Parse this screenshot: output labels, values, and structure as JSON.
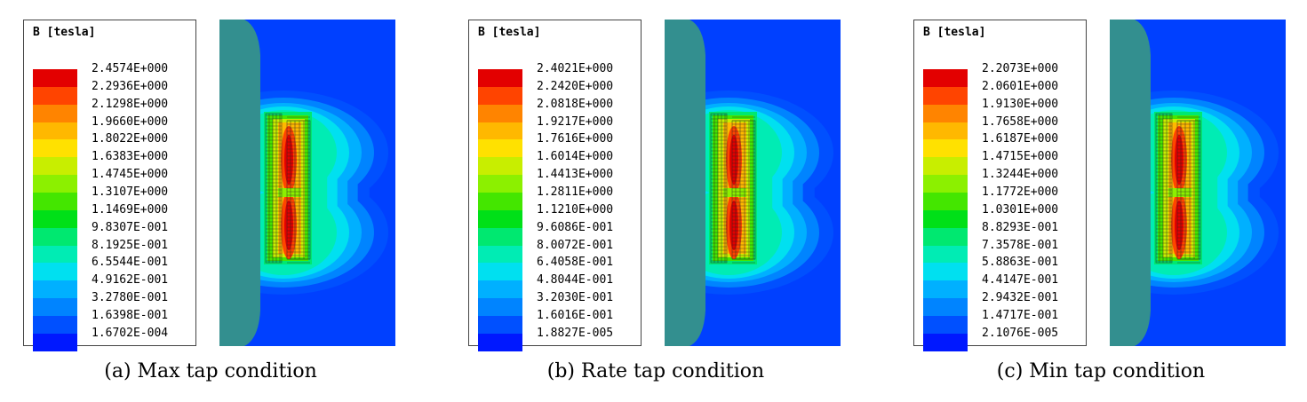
{
  "colors": {
    "scale": [
      "#e30000",
      "#ff4400",
      "#ff8400",
      "#ffb800",
      "#ffe100",
      "#c8ee00",
      "#8cf000",
      "#44e600",
      "#00e018",
      "#00e870",
      "#00ecb4",
      "#00e0f0",
      "#00b0ff",
      "#0084ff",
      "#0050ff",
      "#0018ff"
    ],
    "field_background": "#0040ff",
    "core": "#338f8f"
  },
  "panels": [
    {
      "legend_title": "B [tesla]",
      "legend_values": [
        "2.4574E+000",
        "2.2936E+000",
        "2.1298E+000",
        "1.9660E+000",
        "1.8022E+000",
        "1.6383E+000",
        "1.4745E+000",
        "1.3107E+000",
        "1.1469E+000",
        "9.8307E-001",
        "8.1925E-001",
        "6.5544E-001",
        "4.9162E-001",
        "3.2780E-001",
        "1.6398E-001",
        "1.6702E-004"
      ],
      "caption": "(a) Max tap condition"
    },
    {
      "legend_title": "B [tesla]",
      "legend_values": [
        "2.4021E+000",
        "2.2420E+000",
        "2.0818E+000",
        "1.9217E+000",
        "1.7616E+000",
        "1.6014E+000",
        "1.4413E+000",
        "1.2811E+000",
        "1.1210E+000",
        "9.6086E-001",
        "8.0072E-001",
        "6.4058E-001",
        "4.8044E-001",
        "3.2030E-001",
        "1.6016E-001",
        "1.8827E-005"
      ],
      "caption": "(b) Rate tap condition"
    },
    {
      "legend_title": "B [tesla]",
      "legend_values": [
        "2.2073E+000",
        "2.0601E+000",
        "1.9130E+000",
        "1.7658E+000",
        "1.6187E+000",
        "1.4715E+000",
        "1.3244E+000",
        "1.1772E+000",
        "1.0301E+000",
        "8.8293E-001",
        "7.3578E-001",
        "5.8863E-001",
        "4.4147E-001",
        "2.9432E-001",
        "1.4717E-001",
        "2.1076E-005"
      ],
      "caption": "(c) Min tap condition"
    }
  ]
}
